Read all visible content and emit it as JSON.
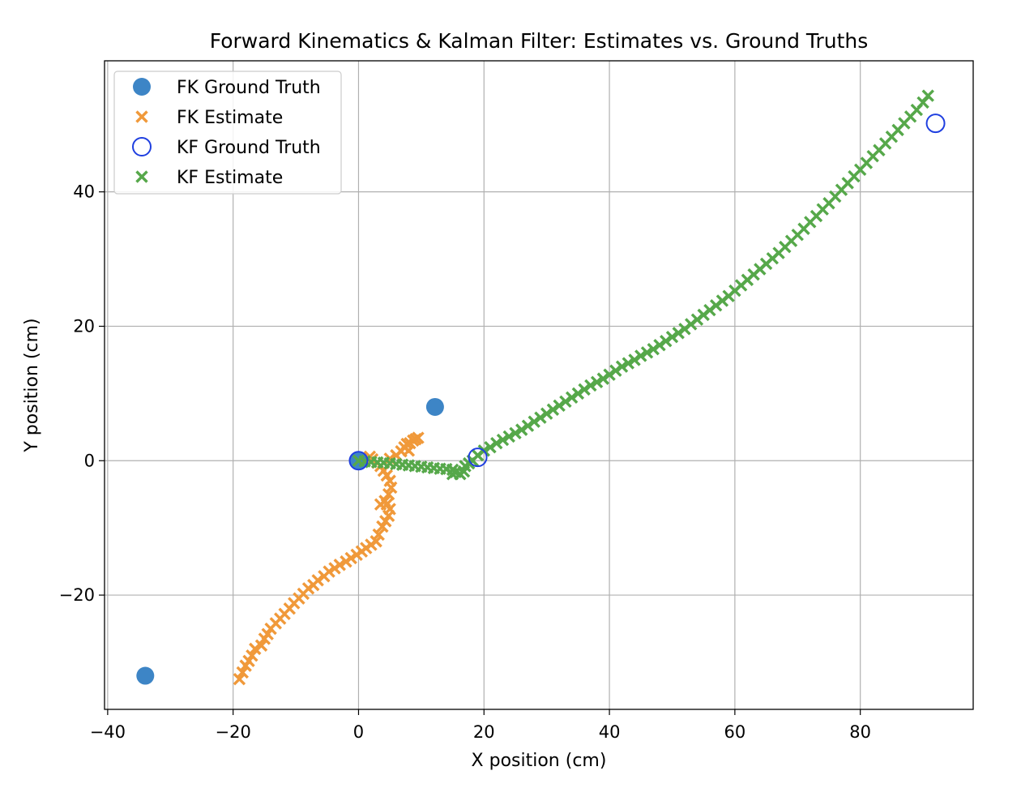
{
  "chart_data": {
    "type": "scatter",
    "title": "Forward Kinematics & Kalman Filter: Estimates vs. Ground Truths",
    "xlabel": "X position (cm)",
    "ylabel": "Y position (cm)",
    "xlim": [
      -40.5,
      98
    ],
    "ylim": [
      -37,
      59.5
    ],
    "xticks": [
      -40,
      -20,
      0,
      20,
      40,
      60,
      80
    ],
    "yticks": [
      -20,
      0,
      20,
      40
    ],
    "xtick_labels": [
      "−40",
      "−20",
      "0",
      "20",
      "40",
      "60",
      "80"
    ],
    "ytick_labels": [
      "−20",
      "0",
      "20",
      "40"
    ],
    "grid": true,
    "legend_position": "top-left",
    "series": [
      {
        "name": "FK Ground Truth",
        "marker": "circle",
        "color": "#3d85c6",
        "points": [
          [
            -34,
            -32
          ],
          [
            12.2,
            8
          ],
          [
            0,
            0
          ]
        ]
      },
      {
        "name": "FK Estimate",
        "marker": "x",
        "color": "#f0993a",
        "points": [
          [
            -19,
            -32.5
          ],
          [
            -18.5,
            -31.5
          ],
          [
            -18,
            -30.5
          ],
          [
            -17.5,
            -29.8
          ],
          [
            -17,
            -29
          ],
          [
            -16.5,
            -28
          ],
          [
            -15.5,
            -27.5
          ],
          [
            -15,
            -26.5
          ],
          [
            -14.5,
            -25.8
          ],
          [
            -14,
            -25
          ],
          [
            -13.2,
            -24.2
          ],
          [
            -12.5,
            -23.5
          ],
          [
            -11.8,
            -22.8
          ],
          [
            -11,
            -22
          ],
          [
            -10.3,
            -21.2
          ],
          [
            -9.5,
            -20.5
          ],
          [
            -8.8,
            -19.8
          ],
          [
            -8,
            -19
          ],
          [
            -7.2,
            -18.5
          ],
          [
            -6.5,
            -17.8
          ],
          [
            -5.5,
            -17.2
          ],
          [
            -4.7,
            -16.5
          ],
          [
            -3.8,
            -16
          ],
          [
            -3,
            -15.5
          ],
          [
            -2,
            -15
          ],
          [
            -1.2,
            -14.5
          ],
          [
            -0.3,
            -14
          ],
          [
            0.5,
            -13.5
          ],
          [
            1.2,
            -13
          ],
          [
            2,
            -12.5
          ],
          [
            2.8,
            -12
          ],
          [
            3.2,
            -11
          ],
          [
            3.8,
            -9.8
          ],
          [
            4.3,
            -9
          ],
          [
            4.8,
            -8.2
          ],
          [
            5,
            -7.2
          ],
          [
            4.5,
            -6.5
          ],
          [
            3.5,
            -6.5
          ],
          [
            4.2,
            -6
          ],
          [
            4.8,
            -5
          ],
          [
            5.2,
            -4
          ],
          [
            5,
            -3
          ],
          [
            4.5,
            -2.2
          ],
          [
            4,
            -1.5
          ],
          [
            3.5,
            -0.8
          ],
          [
            3,
            -0.3
          ],
          [
            2.2,
            0.2
          ],
          [
            1.8,
            0.6
          ],
          [
            5,
            0.3
          ],
          [
            6,
            0.8
          ],
          [
            6.8,
            1.4
          ],
          [
            7.3,
            2
          ],
          [
            7.7,
            2.5
          ],
          [
            8.2,
            2.6
          ],
          [
            8.7,
            3
          ],
          [
            9.1,
            3.2
          ],
          [
            9.5,
            3.4
          ],
          [
            8,
            1.5
          ]
        ]
      },
      {
        "name": "KF Ground Truth",
        "marker": "circle-open",
        "color": "#1f3fe0",
        "points": [
          [
            0,
            0
          ],
          [
            19,
            0.5
          ],
          [
            92,
            50.2
          ]
        ]
      },
      {
        "name": "KF Estimate",
        "marker": "x",
        "color": "#56a84a",
        "points": [
          [
            0,
            0
          ],
          [
            1,
            -0.1
          ],
          [
            2,
            -0.2
          ],
          [
            3,
            -0.25
          ],
          [
            4,
            -0.3
          ],
          [
            5,
            -0.4
          ],
          [
            6,
            -0.5
          ],
          [
            7,
            -0.6
          ],
          [
            8,
            -0.7
          ],
          [
            9,
            -0.8
          ],
          [
            10,
            -0.9
          ],
          [
            11,
            -1
          ],
          [
            12,
            -1.1
          ],
          [
            13,
            -1.2
          ],
          [
            14,
            -1.25
          ],
          [
            15,
            -1.35
          ],
          [
            15.5,
            -1.7
          ],
          [
            15,
            -2
          ],
          [
            16.2,
            -2
          ],
          [
            16.8,
            -1.6
          ],
          [
            17,
            -0.8
          ],
          [
            17.6,
            -0.4
          ],
          [
            18.2,
            0
          ],
          [
            19,
            0.8
          ],
          [
            20,
            1.5
          ],
          [
            21,
            2
          ],
          [
            22,
            2.6
          ],
          [
            23,
            3.1
          ],
          [
            24,
            3.6
          ],
          [
            25,
            4.1
          ],
          [
            26,
            4.6
          ],
          [
            27,
            5.2
          ],
          [
            28,
            5.8
          ],
          [
            29,
            6.4
          ],
          [
            30,
            7
          ],
          [
            31,
            7.6
          ],
          [
            32,
            8.2
          ],
          [
            33,
            8.8
          ],
          [
            34,
            9.4
          ],
          [
            35,
            10
          ],
          [
            36,
            10.6
          ],
          [
            37,
            11.2
          ],
          [
            38,
            11.7
          ],
          [
            39,
            12.2
          ],
          [
            40,
            12.8
          ],
          [
            41,
            13.4
          ],
          [
            42,
            14
          ],
          [
            43,
            14.5
          ],
          [
            44,
            15
          ],
          [
            45,
            15.6
          ],
          [
            46,
            16.1
          ],
          [
            47,
            16.6
          ],
          [
            48,
            17.2
          ],
          [
            49,
            17.8
          ],
          [
            50,
            18.4
          ],
          [
            51,
            19
          ],
          [
            52,
            19.6
          ],
          [
            53,
            20.3
          ],
          [
            54,
            21
          ],
          [
            55,
            21.7
          ],
          [
            56,
            22.4
          ],
          [
            57,
            23.1
          ],
          [
            58,
            23.8
          ],
          [
            59,
            24.5
          ],
          [
            60,
            25.3
          ],
          [
            61,
            26.1
          ],
          [
            62,
            26.9
          ],
          [
            63,
            27.7
          ],
          [
            64,
            28.5
          ],
          [
            65,
            29.3
          ],
          [
            66,
            30.1
          ],
          [
            67,
            30.9
          ],
          [
            68,
            31.8
          ],
          [
            69,
            32.7
          ],
          [
            70,
            33.6
          ],
          [
            71,
            34.5
          ],
          [
            72,
            35.5
          ],
          [
            73,
            36.4
          ],
          [
            74,
            37.4
          ],
          [
            75,
            38.3
          ],
          [
            76,
            39.3
          ],
          [
            77,
            40.3
          ],
          [
            78,
            41.3
          ],
          [
            79,
            42.3
          ],
          [
            80,
            43.3
          ],
          [
            81,
            44.3
          ],
          [
            82,
            45.3
          ],
          [
            83,
            46.2
          ],
          [
            84,
            47.2
          ],
          [
            85,
            48.2
          ],
          [
            86,
            49.2
          ],
          [
            87,
            50.2
          ],
          [
            88,
            51.2
          ],
          [
            89,
            52.2
          ],
          [
            90,
            53.3
          ],
          [
            90.8,
            54.3
          ]
        ]
      }
    ]
  }
}
